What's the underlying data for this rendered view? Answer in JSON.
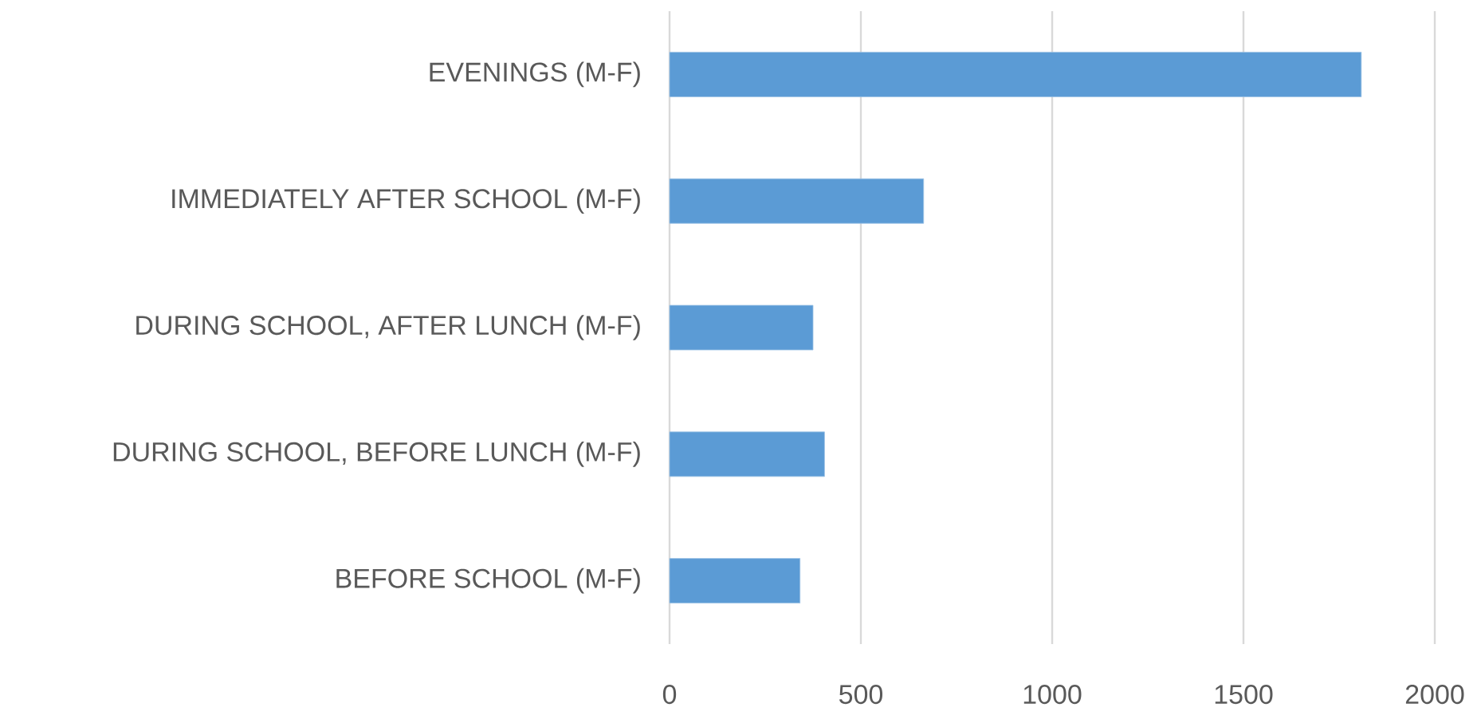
{
  "chart_data": {
    "type": "bar",
    "orientation": "horizontal",
    "categories": [
      "EVENINGS (M-F)",
      "IMMEDIATELY AFTER SCHOOL (M-F)",
      "DURING SCHOOL, AFTER LUNCH (M-F)",
      "DURING SCHOOL, BEFORE LUNCH (M-F)",
      "BEFORE SCHOOL (M-F)"
    ],
    "values": [
      1808,
      664,
      375,
      405,
      341
    ],
    "color": "#5b9bd5",
    "xlim": [
      0,
      2000
    ],
    "xticks": [
      0,
      500,
      1000,
      1500,
      2000
    ],
    "grid": "x"
  }
}
